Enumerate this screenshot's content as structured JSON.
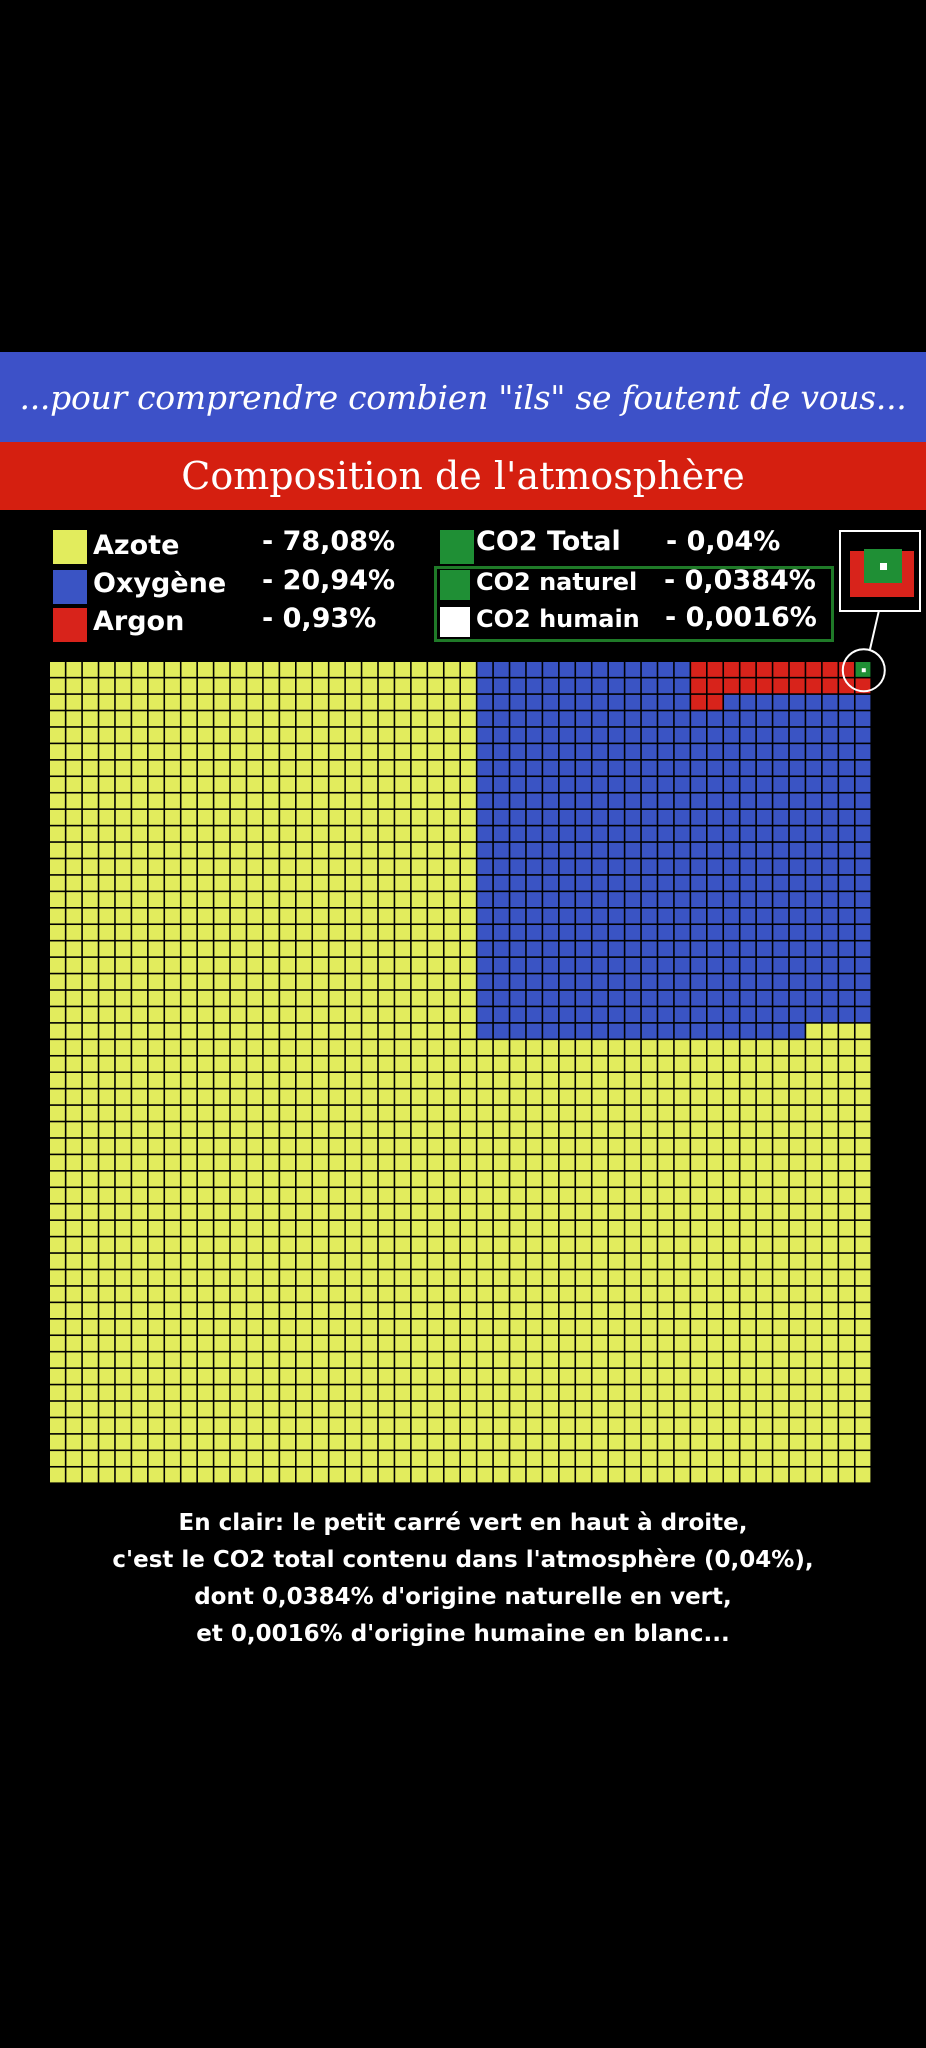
{
  "header": {
    "tagline": "...pour comprendre combien \"ils\" se foutent de vous...",
    "title": "Composition de l'atmosphère"
  },
  "legend": {
    "gases": [
      {
        "name": "Azote",
        "value": "- 78,08%",
        "color": "#e2ec5d"
      },
      {
        "name": "Oxygène",
        "value": "- 20,94%",
        "color": "#3a54c4"
      },
      {
        "name": "Argon",
        "value": "- 0,93%",
        "color": "#d8231b"
      }
    ],
    "co2": [
      {
        "name": "CO2 Total",
        "value": "- 0,04%",
        "color": "#1f8f35"
      },
      {
        "name": "CO2 naturel",
        "value": "- 0,0384%",
        "color": "#1f8f35"
      },
      {
        "name": "CO2 humain",
        "value": "- 0,0016%",
        "color": "#ffffff"
      }
    ]
  },
  "caption": {
    "lines": [
      "En clair: le petit carré vert en haut à droite,",
      "c'est le CO2 total contenu dans l'atmosphère (0,04%),",
      "dont 0,0384% d'origine naturelle en vert,",
      "et 0,0016% d'origine humaine en blanc..."
    ]
  },
  "chart_data": {
    "type": "waffle",
    "title": "Composition de l'atmosphère",
    "grid": {
      "columns": 50,
      "rows": 50,
      "total_cells": 2500,
      "unit_percent": 0.04
    },
    "series": [
      {
        "name": "Azote",
        "value": 78.08,
        "color": "#e2ec5d"
      },
      {
        "name": "Oxygène",
        "value": 20.94,
        "color": "#3a54c4"
      },
      {
        "name": "Argon",
        "value": 0.93,
        "color": "#d8231b"
      },
      {
        "name": "CO2 Total",
        "value": 0.04,
        "color": "#1f8f35"
      },
      {
        "name": "CO2 naturel",
        "value": 0.0384,
        "color": "#1f8f35"
      },
      {
        "name": "CO2 humain",
        "value": 0.0016,
        "color": "#ffffff"
      }
    ],
    "grid_lines": true,
    "legend_position": "top"
  }
}
